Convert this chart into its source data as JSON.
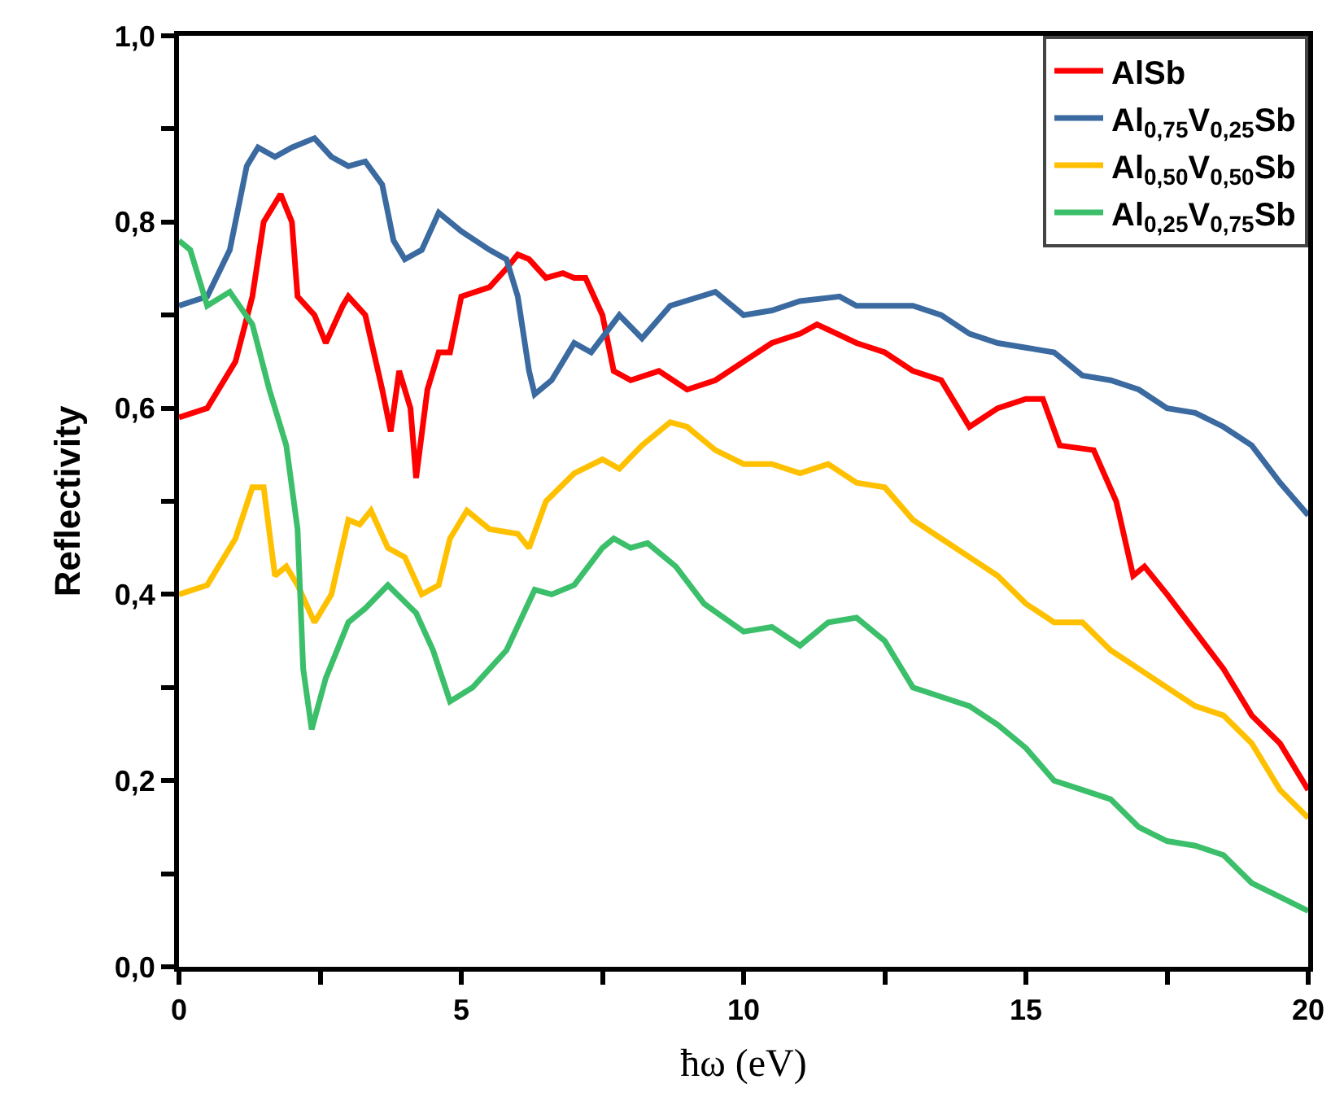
{
  "chart_data": {
    "type": "line",
    "xlabel": "ħω (eV)",
    "ylabel": "Reflectivity",
    "xlim": [
      0,
      20
    ],
    "ylim": [
      0,
      1
    ],
    "xticks": [
      0,
      {
        "value": 2.5,
        "label": null
      },
      5,
      {
        "value": 7.5,
        "label": null
      },
      10,
      {
        "value": 12.5,
        "label": null
      },
      15,
      {
        "value": 17.5,
        "label": null
      },
      20
    ],
    "yticks": [
      {
        "value": 0,
        "label": "0,0"
      },
      {
        "value": 0.1,
        "label": null
      },
      {
        "value": 0.2,
        "label": "0,2"
      },
      {
        "value": 0.3,
        "label": null
      },
      {
        "value": 0.4,
        "label": "0,4"
      },
      {
        "value": 0.5,
        "label": null
      },
      {
        "value": 0.6,
        "label": "0,6"
      },
      {
        "value": 0.7,
        "label": null
      },
      {
        "value": 0.8,
        "label": "0,8"
      },
      {
        "value": 0.9,
        "label": null
      },
      {
        "value": 1.0,
        "label": "1,0"
      }
    ],
    "legend": "top right",
    "marker": "none",
    "line_style": "solid",
    "series": [
      {
        "name": "AlSb",
        "color": "#ff0000",
        "x": [
          0,
          0.5,
          1,
          1.3,
          1.5,
          1.8,
          2.0,
          2.1,
          2.4,
          2.6,
          2.9,
          3.0,
          3.3,
          3.6,
          3.75,
          3.9,
          4.1,
          4.2,
          4.4,
          4.6,
          4.8,
          5.0,
          5.5,
          5.8,
          6.0,
          6.2,
          6.5,
          6.8,
          7.0,
          7.2,
          7.5,
          7.7,
          8.0,
          8.5,
          9.0,
          9.5,
          10,
          10.5,
          11,
          11.3,
          12,
          12.5,
          13,
          13.5,
          14,
          14.5,
          15,
          15.3,
          15.6,
          16.2,
          16.6,
          16.9,
          17.1,
          17.5,
          18,
          18.5,
          19,
          19.5,
          20
        ],
        "values": [
          0.59,
          0.6,
          0.65,
          0.72,
          0.8,
          0.83,
          0.8,
          0.72,
          0.7,
          0.67,
          0.71,
          0.72,
          0.7,
          0.62,
          0.575,
          0.64,
          0.6,
          0.525,
          0.62,
          0.66,
          0.66,
          0.72,
          0.73,
          0.75,
          0.765,
          0.76,
          0.74,
          0.745,
          0.74,
          0.74,
          0.7,
          0.64,
          0.63,
          0.64,
          0.62,
          0.63,
          0.65,
          0.67,
          0.68,
          0.69,
          0.67,
          0.66,
          0.64,
          0.63,
          0.58,
          0.6,
          0.61,
          0.61,
          0.56,
          0.555,
          0.5,
          0.42,
          0.43,
          0.4,
          0.36,
          0.32,
          0.27,
          0.24,
          0.19
        ]
      },
      {
        "name": "Al$_{0,75}$V$_{0,25}$Sb",
        "color": "#3a6aa0",
        "x": [
          0,
          0.5,
          0.9,
          1.2,
          1.4,
          1.7,
          2.0,
          2.4,
          2.7,
          3.0,
          3.3,
          3.6,
          3.8,
          4.0,
          4.3,
          4.6,
          5.0,
          5.5,
          5.8,
          6.0,
          6.2,
          6.3,
          6.6,
          7.0,
          7.3,
          7.8,
          8.2,
          8.7,
          9.5,
          10,
          10.5,
          11,
          11.7,
          12,
          13,
          13.5,
          14,
          14.5,
          15,
          15.5,
          16,
          16.5,
          17,
          17.5,
          18,
          18.5,
          19,
          19.5,
          20
        ],
        "values": [
          0.71,
          0.72,
          0.77,
          0.86,
          0.88,
          0.87,
          0.88,
          0.89,
          0.87,
          0.86,
          0.865,
          0.84,
          0.78,
          0.76,
          0.77,
          0.81,
          0.79,
          0.77,
          0.76,
          0.72,
          0.64,
          0.615,
          0.63,
          0.67,
          0.66,
          0.7,
          0.675,
          0.71,
          0.725,
          0.7,
          0.705,
          0.715,
          0.72,
          0.71,
          0.71,
          0.7,
          0.68,
          0.67,
          0.665,
          0.66,
          0.635,
          0.63,
          0.62,
          0.6,
          0.595,
          0.58,
          0.56,
          0.52,
          0.485
        ]
      },
      {
        "name": "Al$_{0,50}$V$_{0,50}$Sb",
        "color": "#ffc000",
        "x": [
          0,
          0.5,
          1.0,
          1.3,
          1.5,
          1.7,
          1.9,
          2.1,
          2.4,
          2.7,
          3.0,
          3.2,
          3.4,
          3.7,
          4.0,
          4.3,
          4.6,
          4.8,
          5.1,
          5.5,
          6.0,
          6.2,
          6.5,
          7.0,
          7.5,
          7.8,
          8.2,
          8.7,
          9.0,
          9.5,
          10,
          10.5,
          11,
          11.5,
          12,
          12.5,
          13,
          13.5,
          14,
          14.5,
          15,
          15.5,
          16,
          16.5,
          17,
          17.5,
          18,
          18.5,
          19,
          19.5,
          20
        ],
        "values": [
          0.4,
          0.41,
          0.46,
          0.515,
          0.515,
          0.42,
          0.43,
          0.41,
          0.37,
          0.4,
          0.48,
          0.475,
          0.49,
          0.45,
          0.44,
          0.4,
          0.41,
          0.46,
          0.49,
          0.47,
          0.465,
          0.45,
          0.5,
          0.53,
          0.545,
          0.535,
          0.56,
          0.585,
          0.58,
          0.555,
          0.54,
          0.54,
          0.53,
          0.54,
          0.52,
          0.515,
          0.48,
          0.46,
          0.44,
          0.42,
          0.39,
          0.37,
          0.37,
          0.34,
          0.32,
          0.3,
          0.28,
          0.27,
          0.24,
          0.19,
          0.16
        ]
      },
      {
        "name": "Al$_{0,25}$V$_{0,75}$Sb",
        "color": "#3cbf6a",
        "x": [
          0,
          0.2,
          0.5,
          0.9,
          1.3,
          1.6,
          1.9,
          2.1,
          2.2,
          2.35,
          2.6,
          3.0,
          3.3,
          3.7,
          4.2,
          4.5,
          4.8,
          5.2,
          5.8,
          6.3,
          6.6,
          7.0,
          7.5,
          7.7,
          8.0,
          8.3,
          8.8,
          9.3,
          10,
          10.5,
          11,
          11.5,
          12,
          12.5,
          13,
          13.5,
          14,
          14.5,
          15,
          15.5,
          16,
          16.5,
          17,
          17.5,
          18,
          18.5,
          19,
          19.5,
          20
        ],
        "values": [
          0.78,
          0.77,
          0.71,
          0.725,
          0.69,
          0.62,
          0.56,
          0.47,
          0.32,
          0.255,
          0.31,
          0.37,
          0.385,
          0.41,
          0.38,
          0.34,
          0.285,
          0.3,
          0.34,
          0.405,
          0.4,
          0.41,
          0.45,
          0.46,
          0.45,
          0.455,
          0.43,
          0.39,
          0.36,
          0.365,
          0.345,
          0.37,
          0.375,
          0.35,
          0.3,
          0.29,
          0.28,
          0.26,
          0.235,
          0.2,
          0.19,
          0.18,
          0.15,
          0.135,
          0.13,
          0.12,
          0.09,
          0.075,
          0.06
        ]
      }
    ]
  }
}
